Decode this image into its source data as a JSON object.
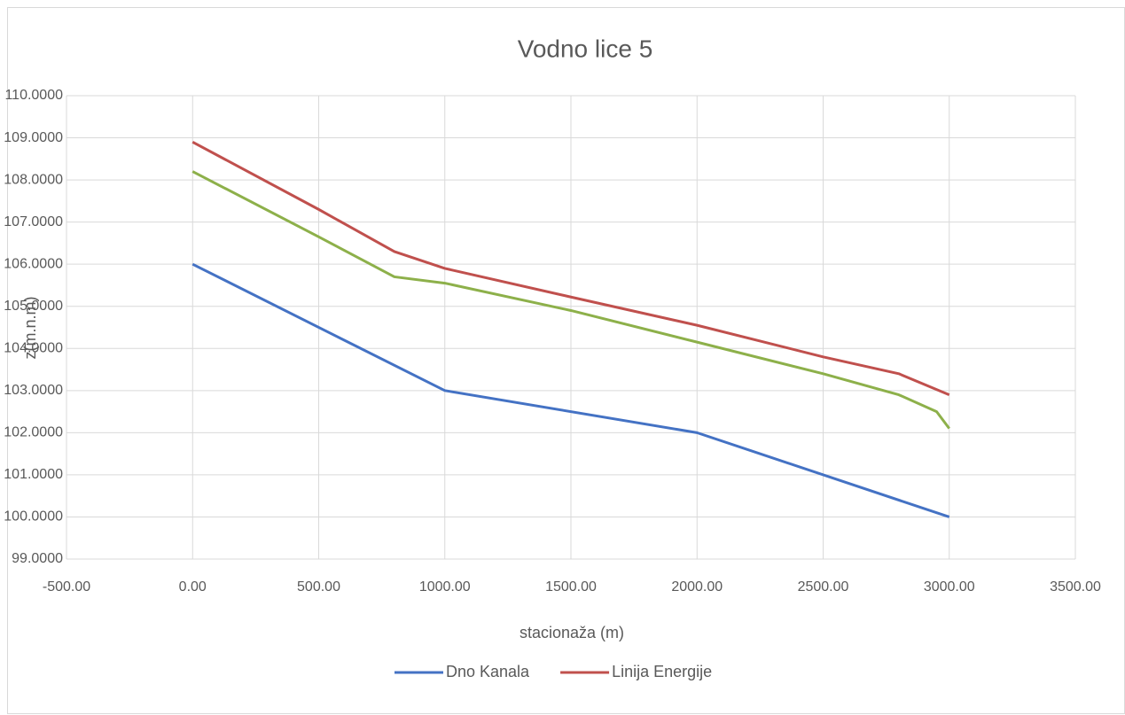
{
  "chart_data": {
    "type": "line",
    "title": "Vodno lice 5",
    "x_label": "stacionaža (m)",
    "y_label": "z(m.n.m)",
    "xlim": [
      -500,
      3500
    ],
    "xticks": [
      {
        "value": -500,
        "label": "-500.00"
      },
      {
        "value": 0,
        "label": "0.00"
      },
      {
        "value": 500,
        "label": "500.00"
      },
      {
        "value": 1000,
        "label": "1000.00"
      },
      {
        "value": 1500,
        "label": "1500.00"
      },
      {
        "value": 2000,
        "label": "2000.00"
      },
      {
        "value": 2500,
        "label": "2500.00"
      },
      {
        "value": 3000,
        "label": "3000.00"
      },
      {
        "value": 3500,
        "label": "3500.00"
      }
    ],
    "ylim": [
      99,
      110
    ],
    "yticks": [
      {
        "value": 99,
        "label": "99.0000"
      },
      {
        "value": 100,
        "label": "100.0000"
      },
      {
        "value": 101,
        "label": "101.0000"
      },
      {
        "value": 102,
        "label": "102.0000"
      },
      {
        "value": 103,
        "label": "103.0000"
      },
      {
        "value": 104,
        "label": "104.0000"
      },
      {
        "value": 105,
        "label": "105.0000"
      },
      {
        "value": 106,
        "label": "106.0000"
      },
      {
        "value": 107,
        "label": "107.0000"
      },
      {
        "value": 108,
        "label": "108.0000"
      },
      {
        "value": 109,
        "label": "109.0000"
      },
      {
        "value": 110,
        "label": "110.0000"
      }
    ],
    "grid": true,
    "legend": "bottom",
    "series": [
      {
        "name": "Dno Kanala",
        "color": "#4472c4",
        "x": [
          0,
          1000,
          2000,
          3000
        ],
        "values": [
          106,
          103,
          102,
          100
        ]
      },
      {
        "name": "Linija Energije",
        "color": "#c0504d",
        "x": [
          0,
          500,
          800,
          1000,
          1500,
          2000,
          2500,
          2800,
          3000
        ],
        "values": [
          108.9,
          107.3,
          106.3,
          105.9,
          105.22,
          104.55,
          103.8,
          103.4,
          102.9
        ]
      },
      {
        "color": "#8db04a",
        "x": [
          0,
          500,
          800,
          1000,
          1500,
          2000,
          2500,
          2800,
          2950,
          3000
        ],
        "values": [
          108.2,
          106.65,
          105.7,
          105.55,
          104.9,
          104.15,
          103.4,
          102.9,
          102.5,
          102.1
        ]
      }
    ]
  }
}
